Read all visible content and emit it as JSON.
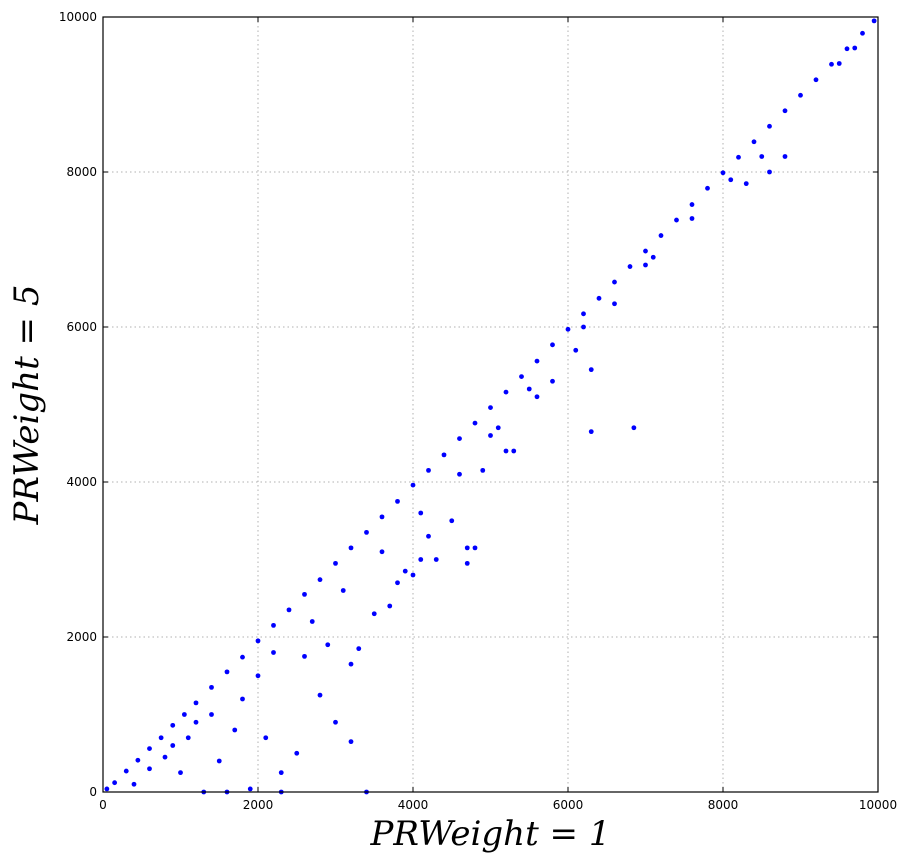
{
  "chart_data": {
    "type": "scatter",
    "title": "",
    "xlabel": "PRWeight = 1",
    "ylabel": "PRWeight = 5",
    "xlim": [
      0,
      10000
    ],
    "ylim": [
      0,
      10000
    ],
    "xticks": [
      "0",
      "2000",
      "4000",
      "6000",
      "8000",
      "10000"
    ],
    "yticks": [
      "0",
      "2000",
      "4000",
      "6000",
      "8000",
      "10000"
    ],
    "grid": true,
    "marker_color": "#0000ff",
    "series": [
      {
        "points": [
          [
            50,
            40
          ],
          [
            150,
            120
          ],
          [
            300,
            270
          ],
          [
            450,
            410
          ],
          [
            600,
            560
          ],
          [
            750,
            700
          ],
          [
            900,
            860
          ],
          [
            1050,
            1000
          ],
          [
            1200,
            1150
          ],
          [
            1400,
            1350
          ],
          [
            1600,
            1550
          ],
          [
            1800,
            1740
          ],
          [
            2000,
            1950
          ],
          [
            2200,
            2150
          ],
          [
            2400,
            2350
          ],
          [
            2600,
            2550
          ],
          [
            2800,
            2740
          ],
          [
            3000,
            2950
          ],
          [
            3200,
            3150
          ],
          [
            3400,
            3350
          ],
          [
            3600,
            3550
          ],
          [
            3800,
            3750
          ],
          [
            4000,
            3960
          ],
          [
            4200,
            4150
          ],
          [
            4400,
            4350
          ],
          [
            4600,
            4560
          ],
          [
            4800,
            4760
          ],
          [
            5000,
            4960
          ],
          [
            5200,
            5160
          ],
          [
            5400,
            5360
          ],
          [
            5600,
            5560
          ],
          [
            5800,
            5770
          ],
          [
            6000,
            5970
          ],
          [
            6200,
            6170
          ],
          [
            6400,
            6370
          ],
          [
            6600,
            6580
          ],
          [
            6800,
            6780
          ],
          [
            7000,
            6980
          ],
          [
            7200,
            7180
          ],
          [
            7400,
            7380
          ],
          [
            7600,
            7580
          ],
          [
            7800,
            7790
          ],
          [
            8000,
            7990
          ],
          [
            8200,
            8190
          ],
          [
            8400,
            8390
          ],
          [
            8600,
            8590
          ],
          [
            8800,
            8790
          ],
          [
            9000,
            8990
          ],
          [
            9200,
            9190
          ],
          [
            9400,
            9390
          ],
          [
            9600,
            9590
          ],
          [
            9800,
            9790
          ],
          [
            9950,
            9950
          ],
          [
            1300,
            0
          ],
          [
            1600,
            0
          ],
          [
            1900,
            40
          ],
          [
            2300,
            0
          ],
          [
            3400,
            0
          ],
          [
            1000,
            250
          ],
          [
            1200,
            900
          ],
          [
            1500,
            400
          ],
          [
            1700,
            800
          ],
          [
            2100,
            700
          ],
          [
            2300,
            250
          ],
          [
            2500,
            500
          ],
          [
            2800,
            1250
          ],
          [
            3000,
            900
          ],
          [
            3200,
            650
          ],
          [
            3200,
            1650
          ],
          [
            3300,
            1850
          ],
          [
            2600,
            1750
          ],
          [
            2900,
            1900
          ],
          [
            3500,
            2300
          ],
          [
            3700,
            2400
          ],
          [
            3800,
            2700
          ],
          [
            3900,
            2850
          ],
          [
            4000,
            2800
          ],
          [
            4100,
            3000
          ],
          [
            4200,
            3300
          ],
          [
            4300,
            3000
          ],
          [
            4500,
            3500
          ],
          [
            4700,
            2950
          ],
          [
            4700,
            3150
          ],
          [
            4800,
            3150
          ],
          [
            4900,
            4150
          ],
          [
            5000,
            4600
          ],
          [
            5200,
            4400
          ],
          [
            5300,
            4400
          ],
          [
            5500,
            5200
          ],
          [
            5800,
            5300
          ],
          [
            6300,
            5450
          ],
          [
            6300,
            4650
          ],
          [
            6850,
            4700
          ],
          [
            6200,
            6000
          ],
          [
            7000,
            6800
          ],
          [
            8300,
            7850
          ],
          [
            8500,
            8200
          ],
          [
            8600,
            8000
          ],
          [
            8800,
            8200
          ],
          [
            9500,
            9400
          ],
          [
            9700,
            9600
          ],
          [
            400,
            100
          ],
          [
            600,
            300
          ],
          [
            800,
            450
          ],
          [
            900,
            600
          ],
          [
            1100,
            700
          ],
          [
            1400,
            1000
          ],
          [
            1800,
            1200
          ],
          [
            2000,
            1500
          ],
          [
            2200,
            1800
          ],
          [
            2700,
            2200
          ],
          [
            3100,
            2600
          ],
          [
            3600,
            3100
          ],
          [
            4100,
            3600
          ],
          [
            4600,
            4100
          ],
          [
            5100,
            4700
          ],
          [
            5600,
            5100
          ],
          [
            6100,
            5700
          ],
          [
            6600,
            6300
          ],
          [
            7100,
            6900
          ],
          [
            7600,
            7400
          ],
          [
            8100,
            7900
          ]
        ]
      }
    ]
  }
}
